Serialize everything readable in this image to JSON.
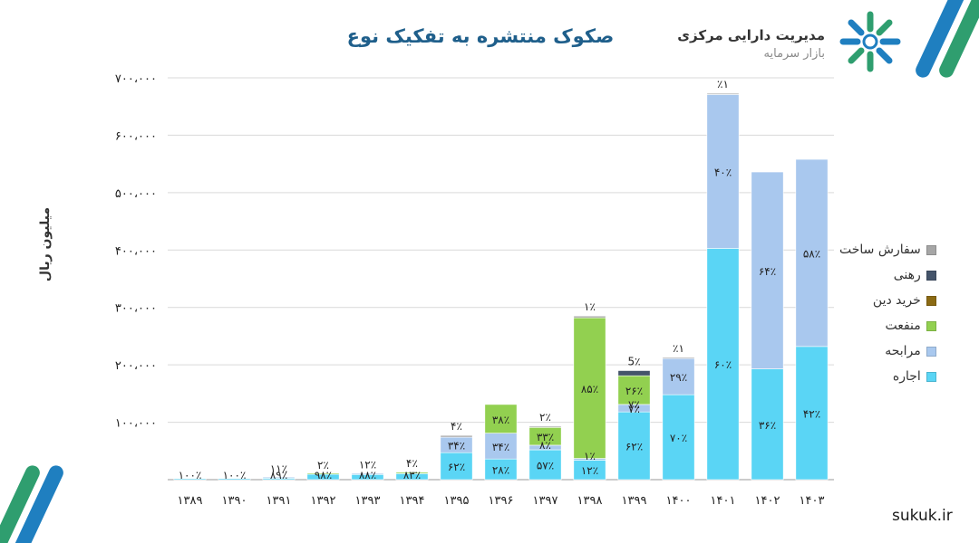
{
  "title": "صکوک منتشره به تفکیک نوع",
  "organization": {
    "name": "مدیریت دارایی مرکزی",
    "subtitle": "بازار سرمایه"
  },
  "website": "sukuk.ir",
  "colors": {
    "ijara": "#5ad5f5",
    "murabaha": "#a9c8ee",
    "manfaat": "#92d050",
    "khorid_dein": "#8b6a14",
    "rahni": "#44546a",
    "sefaresh": "#a6a6a6",
    "accent": "#1f5f8b",
    "stripe_blue": "#1f7fc0",
    "stripe_green": "#2f9e6f"
  },
  "chart_data": {
    "type": "bar",
    "stacked": true,
    "ylabel": "میلیون ریال",
    "ylim": [
      0,
      700000
    ],
    "yticks": [
      {
        "value": 0,
        "label": ""
      },
      {
        "value": 100000,
        "label": "۱۰۰،۰۰۰"
      },
      {
        "value": 200000,
        "label": "۲۰۰،۰۰۰"
      },
      {
        "value": 300000,
        "label": "۳۰۰،۰۰۰"
      },
      {
        "value": 400000,
        "label": "۴۰۰،۰۰۰"
      },
      {
        "value": 500000,
        "label": "۵۰۰،۰۰۰"
      },
      {
        "value": 600000,
        "label": "۶۰۰،۰۰۰"
      },
      {
        "value": 700000,
        "label": "۷۰۰،۰۰۰"
      }
    ],
    "grid": true,
    "legend_position": "right",
    "categories": [
      "۱۳۸۹",
      "۱۳۹۰",
      "۱۳۹۱",
      "۱۳۹۲",
      "۱۳۹۳",
      "۱۳۹۴",
      "۱۳۹۵",
      "۱۳۹۶",
      "۱۳۹۷",
      "۱۳۹۸",
      "۱۳۹۹",
      "۱۴۰۰",
      "۱۴۰۱",
      "۱۴۰۲",
      "۱۴۰۳"
    ],
    "series": [
      {
        "name": "اجاره",
        "color_key": "ijara",
        "values": [
          1500,
          2000,
          2500,
          9500,
          9000,
          10500,
          47000,
          36000,
          52000,
          34000,
          118000,
          148000,
          403000,
          193000,
          232000
        ],
        "labels": [
          "۱۰۰٪",
          "۱۰۰٪",
          "۸۹٪",
          "۹۸٪",
          "۸۸٪",
          "۸۳٪",
          "۶۲٪",
          "۲۸٪",
          "۵۷٪",
          "۱۲٪",
          "۶۲٪",
          "۷۰٪",
          "۶۰٪",
          "۳۶٪",
          "۴۲٪"
        ]
      },
      {
        "name": "مرابحه",
        "color_key": "murabaha",
        "values": [
          0,
          0,
          300,
          0,
          1200,
          0,
          27000,
          45000,
          8000,
          3000,
          13000,
          63000,
          268000,
          343000,
          326000
        ],
        "labels": [
          "",
          "",
          "",
          "",
          "",
          "",
          "۳۴٪",
          "۳۴٪",
          "۸٪",
          "",
          "۷٪",
          "۲۹٪",
          "۴۰٪",
          "۶۴٪",
          "۵۸٪"
        ]
      },
      {
        "name": "منفعت",
        "color_key": "manfaat",
        "values": [
          0,
          0,
          0,
          200,
          0,
          2200,
          0,
          50000,
          31000,
          245000,
          50000,
          0,
          0,
          0,
          0
        ],
        "labels": [
          "",
          "",
          "",
          "",
          "",
          "",
          "",
          "۳۸٪",
          "۳۳٪",
          "۸۵٪",
          "۲۶٪",
          "",
          "",
          "",
          ""
        ]
      },
      {
        "name": "خرید دین",
        "color_key": "khorid_dein",
        "values": [
          0,
          0,
          0,
          0,
          0,
          0,
          0,
          0,
          0,
          0,
          0,
          0,
          0,
          0,
          0
        ],
        "labels": [
          "",
          "",
          "",
          "",
          "",
          "",
          "",
          "",
          "",
          "",
          "",
          "",
          "",
          "",
          ""
        ]
      },
      {
        "name": "رهنی",
        "color_key": "rahni",
        "values": [
          0,
          0,
          0,
          0,
          0,
          0,
          0,
          0,
          0,
          0,
          9000,
          0,
          0,
          0,
          0
        ],
        "labels": [
          "",
          "",
          "",
          "",
          "",
          "",
          "",
          "",
          "",
          "",
          "",
          "",
          "",
          "",
          ""
        ]
      },
      {
        "name": "سفارش ساخت",
        "color_key": "sefaresh",
        "values": [
          0,
          0,
          0,
          0,
          0,
          0,
          3000,
          0,
          2000,
          3000,
          0,
          1500,
          2000,
          0,
          0
        ],
        "labels": [
          "",
          "",
          "",
          "",
          "",
          "",
          "",
          "",
          "",
          "",
          "",
          "",
          "",
          "",
          ""
        ]
      }
    ],
    "top_labels": [
      "",
      "",
      "۱۱٪",
      "۲٪",
      "۱۲٪",
      "۴٪",
      "۴٪",
      "",
      "۲٪",
      "۱٪",
      "5٪",
      "٪۱",
      "٪۱",
      "",
      ""
    ],
    "extra_labels": [
      {
        "category_index": 9,
        "text": "۱٪"
      },
      {
        "category_index": 10,
        "text": "۷٪"
      }
    ]
  }
}
